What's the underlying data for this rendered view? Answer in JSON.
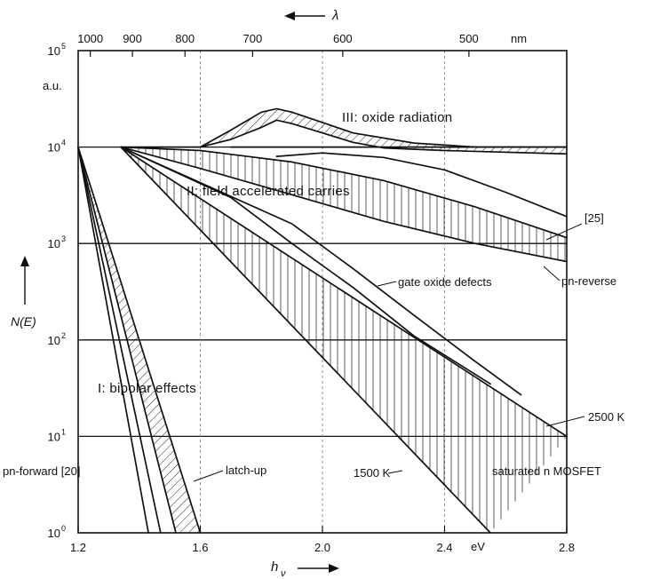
{
  "chart_data": {
    "type": "line",
    "x_axis": {
      "label_h": "h",
      "label_sub": "ν",
      "unit": "eV",
      "range": [
        1.2,
        2.8
      ],
      "ticks": [
        "1.2",
        "1.6",
        "2.0",
        "2.4",
        "2.8"
      ]
    },
    "top_axis": {
      "label": "λ",
      "unit": "nm",
      "ticks": [
        "1000",
        "900",
        "800",
        "700",
        "600",
        "500"
      ]
    },
    "y_axis": {
      "label": "N(E)",
      "unit": "a.u.",
      "scale": "log",
      "range": [
        1,
        100000
      ],
      "ticks": [
        {
          "base": "10",
          "exp": "0",
          "value": 1
        },
        {
          "base": "10",
          "exp": "1",
          "value": 10
        },
        {
          "base": "10",
          "exp": "2",
          "value": 100
        },
        {
          "base": "10",
          "exp": "3",
          "value": 1000
        },
        {
          "base": "10",
          "exp": "4",
          "value": 10000
        },
        {
          "base": "10",
          "exp": "5",
          "value": 100000
        }
      ]
    },
    "regions": [
      {
        "label": "I: bipolar effects"
      },
      {
        "label": "II: field accelerated carries"
      },
      {
        "label": "III: oxide radiation"
      }
    ],
    "series": [
      {
        "name": "pn-forward  [20]",
        "points": [
          [
            1.2,
            10000
          ],
          [
            1.43,
            1
          ]
        ]
      },
      {
        "name": "pn-forward  [20]",
        "points": [
          [
            1.2,
            10000
          ],
          [
            1.47,
            1
          ]
        ]
      },
      {
        "name": "latch-up",
        "points": [
          [
            1.2,
            10000
          ],
          [
            1.52,
            1
          ]
        ]
      },
      {
        "name": "latch-up",
        "points": [
          [
            1.2,
            10000
          ],
          [
            1.6,
            1
          ]
        ]
      },
      {
        "name": "",
        "points": [
          [
            1.34,
            10000
          ],
          [
            1.6,
            10000
          ],
          [
            1.7,
            12000
          ],
          [
            1.8,
            16000
          ],
          [
            1.85,
            19000
          ],
          [
            1.9,
            17500
          ],
          [
            2.0,
            14000
          ],
          [
            2.1,
            11200
          ],
          [
            2.2,
            9800
          ],
          [
            2.4,
            9200
          ],
          [
            2.8,
            8500
          ]
        ]
      },
      {
        "name": "",
        "points": [
          [
            1.6,
            10000
          ],
          [
            1.7,
            15000
          ],
          [
            1.8,
            23000
          ],
          [
            1.85,
            25000
          ],
          [
            1.9,
            23000
          ],
          [
            2.0,
            18000
          ],
          [
            2.1,
            14000
          ],
          [
            2.3,
            11000
          ],
          [
            2.5,
            10000
          ],
          [
            2.8,
            10000
          ]
        ]
      },
      {
        "name": "",
        "points": [
          [
            1.7,
            10000
          ],
          [
            2.8,
            10000
          ]
        ]
      },
      {
        "name": "[25]",
        "points": [
          [
            1.34,
            10000
          ],
          [
            1.6,
            9200
          ],
          [
            1.9,
            7000
          ],
          [
            2.2,
            4500
          ],
          [
            2.5,
            2400
          ],
          [
            2.8,
            1150
          ]
        ]
      },
      {
        "name": "",
        "points": [
          [
            1.85,
            8000
          ],
          [
            2.0,
            8700
          ],
          [
            2.2,
            7800
          ],
          [
            2.4,
            5800
          ],
          [
            2.6,
            3400
          ],
          [
            2.8,
            1900
          ]
        ]
      },
      {
        "name": "pn-reverse",
        "points": [
          [
            1.34,
            10000
          ],
          [
            1.6,
            6000
          ],
          [
            1.9,
            3200
          ],
          [
            2.2,
            1700
          ],
          [
            2.5,
            1000
          ],
          [
            2.8,
            650
          ]
        ]
      },
      {
        "name": "gate oxide defects",
        "points": [
          [
            1.34,
            10000
          ],
          [
            1.7,
            3000
          ],
          [
            1.9,
            1000
          ],
          [
            2.1,
            350
          ],
          [
            2.3,
            110
          ],
          [
            2.55,
            35
          ]
        ]
      },
      {
        "name": "",
        "points": [
          [
            1.34,
            10000
          ],
          [
            1.9,
            1600
          ],
          [
            2.1,
            550
          ],
          [
            2.3,
            180
          ],
          [
            2.5,
            60
          ],
          [
            2.65,
            27
          ]
        ]
      },
      {
        "name": "2500 K",
        "points": [
          [
            1.34,
            10000
          ],
          [
            2.8,
            10
          ]
        ]
      },
      {
        "name": "1500 K",
        "points": [
          [
            1.34,
            10000
          ],
          [
            2.55,
            1
          ]
        ]
      }
    ],
    "annotations": [
      {
        "text": "a.u."
      },
      {
        "text": "[25]"
      },
      {
        "text": "pn-reverse"
      },
      {
        "text": "gate oxide defects"
      },
      {
        "text": "2500 K"
      },
      {
        "text": "1500 K"
      },
      {
        "text": "saturated n MOSFET"
      },
      {
        "text": "pn-forward  [20]"
      },
      {
        "text": "latch-up"
      },
      {
        "text": "eV"
      }
    ]
  }
}
